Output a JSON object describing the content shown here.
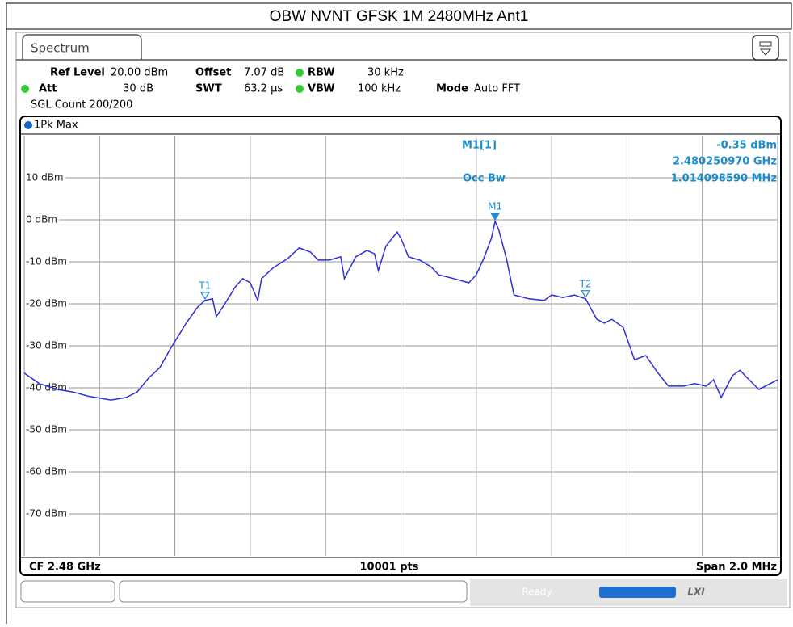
{
  "title": "OBW NVNT GFSK 1M 2480MHz Ant1",
  "instrument": {
    "tab": "Spectrum",
    "settings": [
      {
        "label": "Ref Level",
        "value": "20.00 dBm"
      },
      {
        "label": "Offset",
        "value": "7.07 dB"
      },
      {
        "label": "RBW",
        "value": "30 kHz"
      },
      {
        "label": "Att",
        "value": "30 dB"
      },
      {
        "label": "SWT",
        "value": "63.2 µs"
      },
      {
        "label": "VBW",
        "value": "100 kHz"
      },
      {
        "label": "Mode",
        "value": "Auto FFT"
      }
    ],
    "sgl_count": "SGL Count 200/200",
    "trace_label": "1Pk Max",
    "footer": {
      "cf": "CF 2.48 GHz",
      "points": "10001 pts",
      "span": "Span 2.0 MHz"
    },
    "status": "Ready",
    "logo": "LXI"
  },
  "chart_data": {
    "type": "line",
    "xlim": [
      2.479,
      2.481
    ],
    "xticks": [
      2.479,
      2.4792,
      2.4794,
      2.4796,
      2.4798,
      2.48,
      2.4802,
      2.4804,
      2.4806,
      2.4808,
      2.481
    ],
    "ylim": [
      -80,
      20
    ],
    "yticks": [
      {
        "value": 10,
        "label": "10 dBm"
      },
      {
        "value": 0,
        "label": "0 dBm"
      },
      {
        "value": -10,
        "label": "-10 dBm"
      },
      {
        "value": -20,
        "label": "-20 dBm"
      },
      {
        "value": -30,
        "label": "-30 dBm"
      },
      {
        "value": -40,
        "label": "-40 dBm"
      },
      {
        "value": -50,
        "label": "-50 dBm"
      },
      {
        "value": -60,
        "label": "-60 dBm"
      },
      {
        "value": -70,
        "label": "-70 dBm"
      }
    ],
    "grid": true,
    "series": [
      {
        "color": "#2f2fd8",
        "x": [
          2.479,
          2.47904,
          2.47909,
          2.47913,
          2.47917,
          2.47923,
          2.47927,
          2.4793,
          2.47933,
          2.47936,
          2.47939,
          2.47941,
          2.47943,
          2.47946,
          2.47948,
          2.4795,
          2.47951,
          2.47953,
          2.47956,
          2.47958,
          2.4796,
          2.47962,
          2.47963,
          2.47966,
          2.4797,
          2.47973,
          2.47976,
          2.47978,
          2.47981,
          2.47984,
          2.47985,
          2.47988,
          2.47991,
          2.47993,
          2.47994,
          2.47996,
          2.47999,
          2.48,
          2.48002,
          2.48005,
          2.48008,
          2.4801,
          2.48014,
          2.48018,
          2.4802,
          2.48022,
          2.48024,
          2.48025,
          2.48026,
          2.48028,
          2.4803,
          2.48034,
          2.48038,
          2.4804,
          2.48043,
          2.48046,
          2.48049,
          2.48052,
          2.48054,
          2.48056,
          2.48059,
          2.48062,
          2.48065,
          2.48068,
          2.48071,
          2.48075,
          2.48078,
          2.48081,
          2.48083,
          2.48085,
          2.48088,
          2.4809,
          2.48092,
          2.48095,
          2.481
        ],
        "values": [
          -36.5,
          -39,
          -40.4,
          -41,
          -42,
          -42.9,
          -42.3,
          -41,
          -37.7,
          -35.2,
          -30.4,
          -27.5,
          -24.6,
          -20.8,
          -19.2,
          -18.8,
          -23,
          -20.4,
          -16,
          -14,
          -15,
          -19.2,
          -14,
          -11.5,
          -9.2,
          -6.7,
          -7.7,
          -9.6,
          -9.6,
          -8.8,
          -14,
          -8.8,
          -7.3,
          -8.1,
          -12.1,
          -6.3,
          -2.9,
          -4.4,
          -8.8,
          -9.6,
          -11.2,
          -13.1,
          -14,
          -15,
          -13.1,
          -9.2,
          -4.4,
          -0.35,
          -2.5,
          -9.2,
          -17.9,
          -18.8,
          -19.2,
          -17.9,
          -18.5,
          -17.9,
          -18.8,
          -23.7,
          -24.6,
          -23.7,
          -25.6,
          -33.3,
          -32.3,
          -36.2,
          -39.6,
          -39.6,
          -39,
          -39.6,
          -38.1,
          -42.3,
          -37.1,
          -35.8,
          -37.7,
          -40.4,
          -38.1
        ]
      }
    ],
    "markers": [
      {
        "label": "M1",
        "x": 2.48025,
        "y": -0.35
      },
      {
        "label": "T1",
        "x": 2.47948,
        "y": -19.2
      },
      {
        "label": "T2",
        "x": 2.48049,
        "y": -18.8
      }
    ],
    "marker_readout": {
      "name": "M1[1]",
      "level": "-0.35 dBm",
      "frequency": "2.480250970 GHz",
      "occ_bw_label": "Occ Bw",
      "occ_bw": "1.014098590 MHz"
    }
  }
}
